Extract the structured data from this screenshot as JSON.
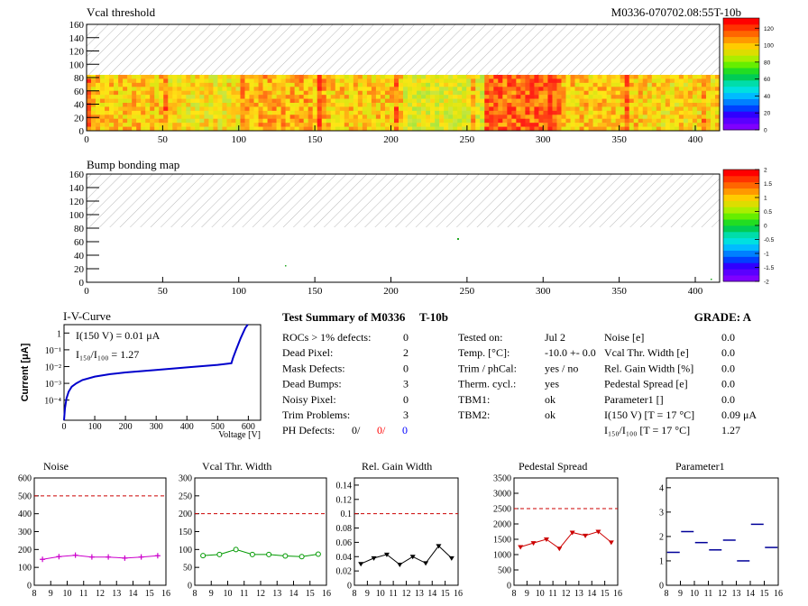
{
  "header": {
    "left_title": "Vcal threshold",
    "right_title": "M0336-070702.08:55T-10b"
  },
  "maps": {
    "vcal": {
      "x_ticks": [
        "0",
        "50",
        "100",
        "150",
        "200",
        "250",
        "300",
        "350",
        "400"
      ],
      "y_ticks": [
        "0",
        "20",
        "40",
        "60",
        "80",
        "100",
        "120",
        "140",
        "160"
      ],
      "scale_ticks": [
        "0",
        "20",
        "40",
        "60",
        "80",
        "100",
        "120"
      ]
    },
    "bump": {
      "title": "Bump bonding map",
      "x_ticks": [
        "0",
        "50",
        "100",
        "150",
        "200",
        "250",
        "300",
        "350",
        "400"
      ],
      "y_ticks": [
        "0",
        "20",
        "40",
        "60",
        "80",
        "100",
        "120",
        "140",
        "160"
      ],
      "scale_ticks": [
        "-2",
        "-1.5",
        "-1",
        "-0.5",
        "0",
        "0.5",
        "1",
        "1.5",
        "2"
      ]
    }
  },
  "iv": {
    "title": "I-V-Curve",
    "ylabel": "Current [μA]",
    "xlabel": "Voltage [V]",
    "x_ticks": [
      "0",
      "100",
      "200",
      "300",
      "400",
      "500",
      "600"
    ],
    "y_ticks": [
      "10⁻⁴",
      "10⁻³",
      "10⁻²",
      "10⁻¹",
      "1"
    ],
    "ann1": "I(150 V) = 0.01 μA",
    "ann2": "I₁₅₀/I₁₀₀ =  1.27"
  },
  "summary": {
    "title": "Test Summary of M0336",
    "module_type": "T-10b",
    "grade_label": "GRADE:  A",
    "rows": [
      {
        "label": "ROCs > 1% defects:",
        "value": "0"
      },
      {
        "label": "Dead Pixel:",
        "value": "2"
      },
      {
        "label": "Mask Defects:",
        "value": "0"
      },
      {
        "label": "Dead Bumps:",
        "value": "3"
      },
      {
        "label": "Noisy Pixel:",
        "value": "0"
      },
      {
        "label": "Trim Problems:",
        "value": "3"
      }
    ],
    "ph_label": "PH Defects:",
    "ph_values": [
      "0/",
      "0/",
      "0"
    ],
    "ph_colors": [
      "#000000",
      "#ff0000",
      "#0000ff"
    ],
    "tests": [
      {
        "label": "Tested on:",
        "value": "Jul 2"
      },
      {
        "label": "Temp. [°C]:",
        "value": "-10.0 +- 0.0"
      },
      {
        "label": "Trim / phCal:",
        "value": "yes / no"
      },
      {
        "label": "Therm. cycl.:",
        "value": "yes"
      },
      {
        "label": "TBM1:",
        "value": "ok"
      },
      {
        "label": "TBM2:",
        "value": "ok"
      }
    ],
    "results": [
      {
        "label": "Noise [e]",
        "value": "0.0"
      },
      {
        "label": "Vcal Thr. Width [e]",
        "value": "0.0"
      },
      {
        "label": "Rel. Gain Width [%]",
        "value": "0.0"
      },
      {
        "label": "Pedestal Spread [e]",
        "value": "0.0"
      },
      {
        "label": "Parameter1 []",
        "value": "0.0"
      },
      {
        "label": "I(150 V) [T = 17 °C]",
        "value": "0.09 μA"
      },
      {
        "label": "I₁₅₀/I₁₀₀  [T = 17 °C]",
        "value": "1.27"
      }
    ]
  },
  "chart_data": [
    {
      "type": "line",
      "title": "Noise",
      "x": [
        8.5,
        9.5,
        10.5,
        11.5,
        12.5,
        13.5,
        14.5,
        15.5
      ],
      "values": [
        145,
        160,
        168,
        158,
        158,
        152,
        158,
        165
      ],
      "xlim": [
        8,
        16
      ],
      "ylim": [
        0,
        600
      ],
      "x_ticks": [
        "8",
        "9",
        "10",
        "11",
        "12",
        "13",
        "14",
        "15",
        "16"
      ],
      "y_ticks": [
        "0",
        "100",
        "200",
        "300",
        "400",
        "500",
        "600"
      ],
      "y_tick_values": [
        0,
        100,
        200,
        300,
        400,
        500,
        600
      ],
      "threshold": 500,
      "color": "#cc00cc",
      "marker": "cross"
    },
    {
      "type": "line",
      "title": "Vcal Thr. Width",
      "x": [
        8.5,
        9.5,
        10.5,
        11.5,
        12.5,
        13.5,
        14.5,
        15.5
      ],
      "values": [
        83,
        86,
        100,
        86,
        86,
        82,
        80,
        87
      ],
      "xlim": [
        8,
        16
      ],
      "ylim": [
        0,
        300
      ],
      "x_ticks": [
        "8",
        "9",
        "10",
        "11",
        "12",
        "13",
        "14",
        "15",
        "16"
      ],
      "y_ticks": [
        "0",
        "50",
        "100",
        "150",
        "200",
        "250",
        "300"
      ],
      "y_tick_values": [
        0,
        50,
        100,
        150,
        200,
        250,
        300
      ],
      "threshold": 200,
      "color": "#009900",
      "marker": "circle"
    },
    {
      "type": "line",
      "title": "Rel. Gain Width",
      "x": [
        8.5,
        9.5,
        10.5,
        11.5,
        12.5,
        13.5,
        14.5,
        15.5
      ],
      "values": [
        0.03,
        0.038,
        0.043,
        0.029,
        0.04,
        0.031,
        0.055,
        0.038
      ],
      "xlim": [
        8,
        16
      ],
      "ylim": [
        0,
        0.15
      ],
      "x_ticks": [
        "8",
        "9",
        "10",
        "11",
        "12",
        "13",
        "14",
        "15",
        "16"
      ],
      "y_ticks": [
        "0",
        "0.02",
        "0.04",
        "0.06",
        "0.08",
        "0.1",
        "0.12",
        "0.14"
      ],
      "y_tick_values": [
        0,
        0.02,
        0.04,
        0.06,
        0.08,
        0.1,
        0.12,
        0.14
      ],
      "threshold": 0.1,
      "color": "#000000",
      "marker": "triangle"
    },
    {
      "type": "line",
      "title": "Pedestal Spread",
      "x": [
        8.5,
        9.5,
        10.5,
        11.5,
        12.5,
        13.5,
        14.5,
        15.5
      ],
      "values": [
        1250,
        1380,
        1500,
        1200,
        1720,
        1620,
        1750,
        1400
      ],
      "xlim": [
        8,
        16
      ],
      "ylim": [
        0,
        3500
      ],
      "x_ticks": [
        "8",
        "9",
        "10",
        "11",
        "12",
        "13",
        "14",
        "15",
        "16"
      ],
      "y_ticks": [
        "0",
        "500",
        "1000",
        "1500",
        "2000",
        "2500",
        "3000",
        "3500"
      ],
      "y_tick_values": [
        0,
        500,
        1000,
        1500,
        2000,
        2500,
        3000,
        3500
      ],
      "threshold": 2500,
      "color": "#cc0000",
      "marker": "triangle"
    },
    {
      "type": "scatter",
      "title": "Parameter1",
      "x": [
        8.5,
        9.5,
        10.5,
        11.5,
        12.5,
        13.5,
        14.5,
        15.5
      ],
      "values": [
        1.35,
        2.2,
        1.75,
        1.45,
        1.85,
        1.0,
        2.5,
        1.55
      ],
      "xlim": [
        8,
        16
      ],
      "ylim": [
        0,
        4.4
      ],
      "x_ticks": [
        "8",
        "9",
        "10",
        "11",
        "12",
        "13",
        "14",
        "15",
        "16"
      ],
      "y_ticks": [
        "0",
        "1",
        "2",
        "3",
        "4"
      ],
      "y_tick_values": [
        0,
        1,
        2,
        3,
        4
      ],
      "threshold": null,
      "color": "#000099",
      "marker": "hbar"
    }
  ]
}
